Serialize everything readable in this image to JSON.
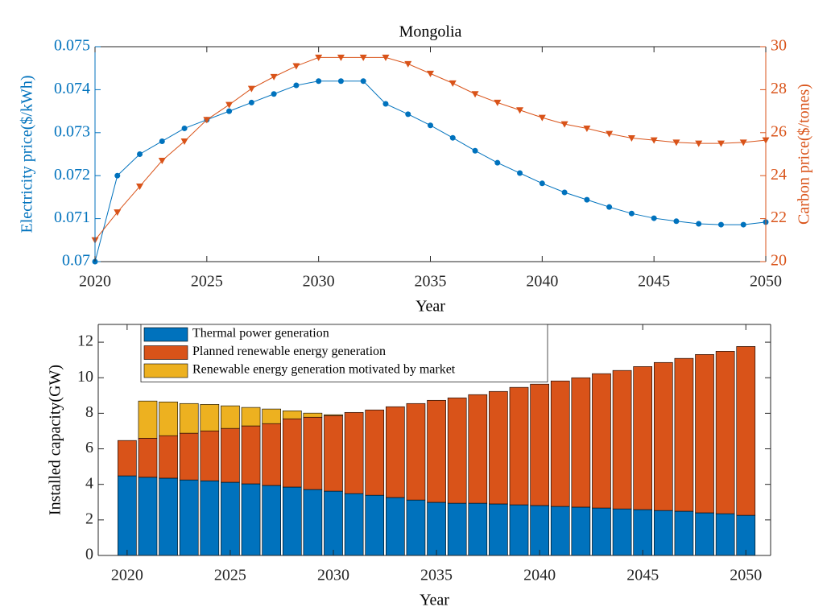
{
  "chart_data": [
    {
      "type": "line",
      "title": "Mongolia",
      "xlabel": "Year",
      "ylabel": "Electricity price($/kWh)",
      "y2label": "Carbon price($/tones)",
      "ycolor": "#0072bd",
      "y2color": "#d95319",
      "x": [
        2020,
        2021,
        2022,
        2023,
        2024,
        2025,
        2026,
        2027,
        2028,
        2029,
        2030,
        2031,
        2032,
        2033,
        2034,
        2035,
        2036,
        2037,
        2038,
        2039,
        2040,
        2041,
        2042,
        2043,
        2044,
        2045,
        2046,
        2047,
        2048,
        2049,
        2050
      ],
      "xlim": [
        2020,
        2050
      ],
      "xticks": [
        2020,
        2025,
        2030,
        2035,
        2040,
        2045,
        2050
      ],
      "ylim": [
        0.07,
        0.075
      ],
      "yticks": [
        0.07,
        0.071,
        0.072,
        0.073,
        0.074,
        0.075
      ],
      "y2lim": [
        20,
        30
      ],
      "y2ticks": [
        20,
        22,
        24,
        26,
        28,
        30
      ],
      "series": [
        {
          "color": "#0072bd",
          "marker": "circle",
          "values": [
            0.07,
            0.072,
            0.0725,
            0.0728,
            0.0731,
            0.0733,
            0.0735,
            0.0737,
            0.0739,
            0.0741,
            0.0742,
            0.0742,
            0.0742,
            0.07367,
            0.07343,
            0.07317,
            0.07288,
            0.07258,
            0.0723,
            0.07206,
            0.07182,
            0.07161,
            0.07144,
            0.07127,
            0.07112,
            0.07101,
            0.07094,
            0.07088,
            0.07086,
            0.07086,
            0.07092
          ]
        },
        {
          "color": "#d95319",
          "marker": "triangle-down",
          "axis": "y2",
          "values": [
            21.0,
            22.3,
            23.5,
            24.7,
            25.6,
            26.6,
            27.3,
            28.05,
            28.6,
            29.1,
            29.5,
            29.5,
            29.5,
            29.5,
            29.2,
            28.75,
            28.3,
            27.8,
            27.4,
            27.05,
            26.7,
            26.4,
            26.2,
            25.95,
            25.75,
            25.65,
            25.55,
            25.5,
            25.5,
            25.55,
            25.65
          ]
        }
      ]
    },
    {
      "type": "stacked-bar",
      "xlabel": "Year",
      "ylabel": "Installed capacity(GW)",
      "x": [
        2020,
        2021,
        2022,
        2023,
        2024,
        2025,
        2026,
        2027,
        2028,
        2029,
        2030,
        2031,
        2032,
        2033,
        2034,
        2035,
        2036,
        2037,
        2038,
        2039,
        2040,
        2041,
        2042,
        2043,
        2044,
        2045,
        2046,
        2047,
        2048,
        2049,
        2050
      ],
      "xlim": [
        2018.6,
        2051.2
      ],
      "xticks": [
        2020,
        2025,
        2030,
        2035,
        2040,
        2045,
        2050
      ],
      "ylim": [
        0,
        13
      ],
      "yticks": [
        0,
        2,
        4,
        6,
        8,
        10,
        12
      ],
      "legend": "upper-left",
      "series": [
        {
          "name": "Thermal power generation",
          "color": "#0072bd",
          "values": [
            4.48,
            4.4,
            4.35,
            4.25,
            4.2,
            4.12,
            4.03,
            3.94,
            3.85,
            3.71,
            3.62,
            3.48,
            3.39,
            3.26,
            3.12,
            2.99,
            2.94,
            2.94,
            2.9,
            2.85,
            2.81,
            2.76,
            2.72,
            2.67,
            2.62,
            2.58,
            2.53,
            2.49,
            2.4,
            2.35,
            2.26
          ]
        },
        {
          "name": "Planned renewable energy generation",
          "color": "#d95319",
          "values": [
            1.99,
            2.2,
            2.39,
            2.63,
            2.81,
            3.03,
            3.26,
            3.48,
            3.84,
            4.07,
            4.25,
            4.57,
            4.8,
            5.11,
            5.43,
            5.74,
            5.93,
            6.11,
            6.33,
            6.61,
            6.83,
            7.06,
            7.28,
            7.56,
            7.79,
            8.05,
            8.33,
            8.6,
            8.91,
            9.14,
            9.5
          ]
        },
        {
          "name": "Renewable energy generation motivated by market",
          "color": "#edb120",
          "values": [
            0,
            2.09,
            1.9,
            1.67,
            1.49,
            1.27,
            1.04,
            0.82,
            0.45,
            0.23,
            0.05,
            0,
            0,
            0,
            0,
            0,
            0,
            0,
            0,
            0,
            0,
            0,
            0,
            0,
            0,
            0,
            0,
            0,
            0,
            0,
            0
          ]
        }
      ]
    }
  ]
}
